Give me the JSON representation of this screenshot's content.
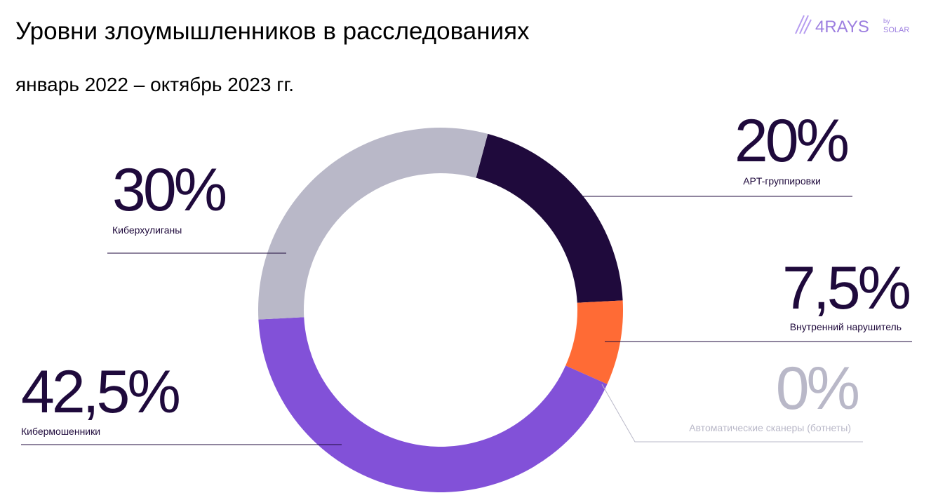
{
  "chart_data": {
    "type": "pie",
    "title": "Уровни злоумышленников в расследованиях",
    "subtitle": "январь 2022 – октябрь 2023 гг.",
    "categories": [
      "APT-группировки",
      "Внутренний нарушитель",
      "Автоматические сканеры (ботнеты)",
      "Кибермошенники",
      "Киберхулиганы"
    ],
    "values": [
      20,
      7.5,
      0,
      42.5,
      30
    ],
    "value_labels": [
      "20%",
      "7,5%",
      "0%",
      "42,5%",
      "30%"
    ],
    "colors": [
      "#1f0a3c",
      "#ff6b35",
      "#b9b8c8",
      "#8251d8",
      "#b9b8c8"
    ]
  },
  "logo": {
    "name": "4RAYS",
    "by": "by",
    "brand": "SOLAR"
  }
}
